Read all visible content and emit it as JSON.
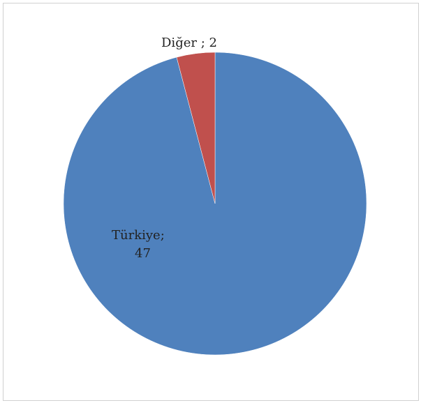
{
  "chart_data": {
    "type": "pie",
    "title": "",
    "slices": [
      {
        "label": "Türkiye",
        "value": 47,
        "color": "#4f81bd",
        "label_text": "Türkiye;",
        "value_text": "47"
      },
      {
        "label": "Diğer",
        "value": 2,
        "color": "#c0504d",
        "label_text": "Diğer ; 2"
      }
    ],
    "legend": "none"
  }
}
